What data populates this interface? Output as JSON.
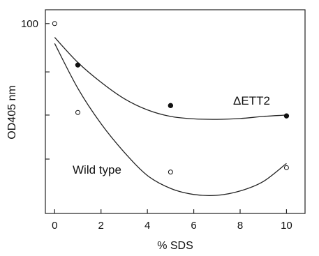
{
  "chart_data": {
    "type": "scatter",
    "xlabel": "% SDS",
    "ylabel": "OD405 nm",
    "xlim": [
      -0.4,
      10.8
    ],
    "x_ticks": [
      0,
      2,
      4,
      6,
      8,
      10
    ],
    "x_tick_labels": [
      "0",
      "2",
      "4",
      "6",
      "8",
      "10"
    ],
    "y_tick_labels": [
      "100"
    ],
    "series": [
      {
        "name": "ΔETT2",
        "marker": "filled-circle",
        "x": [
          1,
          5,
          10
        ],
        "y": [
          0.76,
          0.525,
          0.465
        ],
        "fit_y": [
          0.92,
          0.775,
          0.66,
          0.565,
          0.5,
          0.462,
          0.448,
          0.445,
          0.45,
          0.462,
          0.47
        ]
      },
      {
        "name": "Wild type",
        "marker": "open-circle",
        "x": [
          0,
          1,
          5,
          10
        ],
        "y": [
          1.0,
          0.485,
          0.14,
          0.165
        ],
        "fit_y": [
          0.885,
          0.625,
          0.42,
          0.255,
          0.12,
          0.045,
          0.01,
          0.005,
          0.03,
          0.085,
          0.19
        ]
      }
    ],
    "fit_x": [
      0,
      1,
      2,
      3,
      4,
      5,
      6,
      7,
      8,
      9,
      10
    ],
    "ylim": [
      -0.1,
      1.08
    ],
    "y_ticks_unlabeled": [
      0.215,
      0.47,
      0.72
    ],
    "grid": false,
    "legend": "inline labels"
  },
  "colors": {
    "line": "#222222",
    "marker": "#111111",
    "open_marker_fill": "#ffffff"
  }
}
